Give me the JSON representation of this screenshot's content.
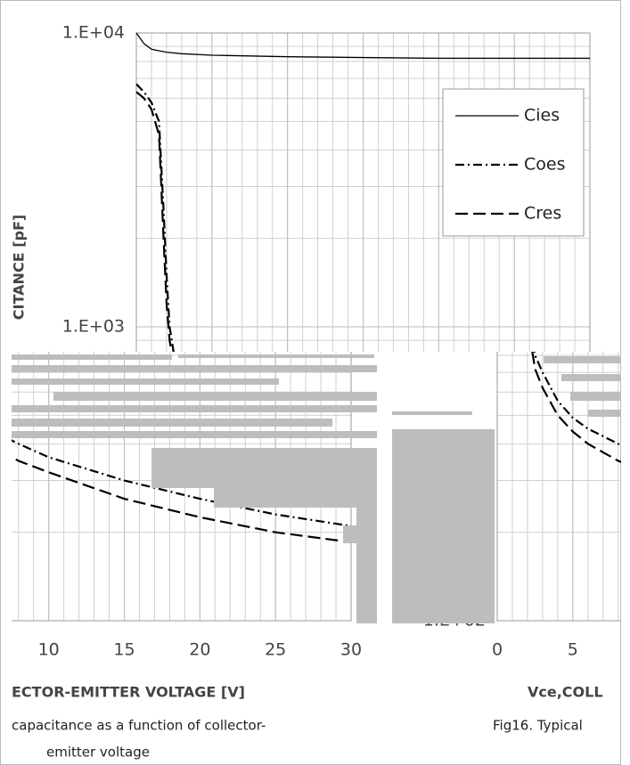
{
  "chart_data": {
    "type": "line",
    "log_y": true,
    "grid": true,
    "legend": "upper right",
    "y_label": "CITANCE [pF]",
    "x_label": "ECTOR-EMITTER VOLTAGE [V]",
    "caption": [
      "capacitance as a function of collector-",
      "emitter voltage"
    ],
    "right_x_label": "Vce,COLL",
    "right_caption": "Fig16.  Typical",
    "xlim": [
      0,
      30
    ],
    "xticks": [
      0,
      5,
      10,
      15,
      20,
      25,
      30
    ],
    "ylim": [
      100,
      10000
    ],
    "yticks": [
      {
        "value": 100,
        "label": "1.E+02"
      },
      {
        "value": 1000,
        "label": "1.E+03"
      },
      {
        "value": 10000,
        "label": "1.E+04"
      }
    ],
    "series": [
      {
        "name": "Cies",
        "color": "#000000",
        "dash": "solid",
        "x": [
          0,
          0.5,
          1,
          1.5,
          2,
          3,
          5,
          10,
          20,
          30
        ],
        "values": [
          10000,
          9200,
          8800,
          8700,
          8600,
          8500,
          8400,
          8300,
          8200,
          8200
        ]
      },
      {
        "name": "Coes",
        "color": "#000000",
        "dash": "dashdot",
        "x": [
          0,
          0.5,
          1,
          1.5,
          1.8,
          2,
          2.2,
          2.5,
          3,
          4,
          5,
          6,
          8,
          10,
          15,
          20,
          25,
          30
        ],
        "values": [
          6700,
          6300,
          5800,
          5000,
          2500,
          1500,
          1000,
          800,
          700,
          560,
          490,
          450,
          400,
          360,
          300,
          260,
          230,
          210
        ]
      },
      {
        "name": "Cres",
        "color": "#000000",
        "dash": "dashed",
        "x": [
          0,
          0.5,
          1,
          1.5,
          1.8,
          2,
          2.2,
          2.5,
          3,
          4,
          5,
          6,
          8,
          10,
          15,
          20,
          25,
          30
        ],
        "values": [
          6300,
          6000,
          5500,
          4500,
          2000,
          1200,
          900,
          720,
          620,
          500,
          440,
          400,
          350,
          320,
          260,
          225,
          200,
          185
        ]
      }
    ]
  }
}
